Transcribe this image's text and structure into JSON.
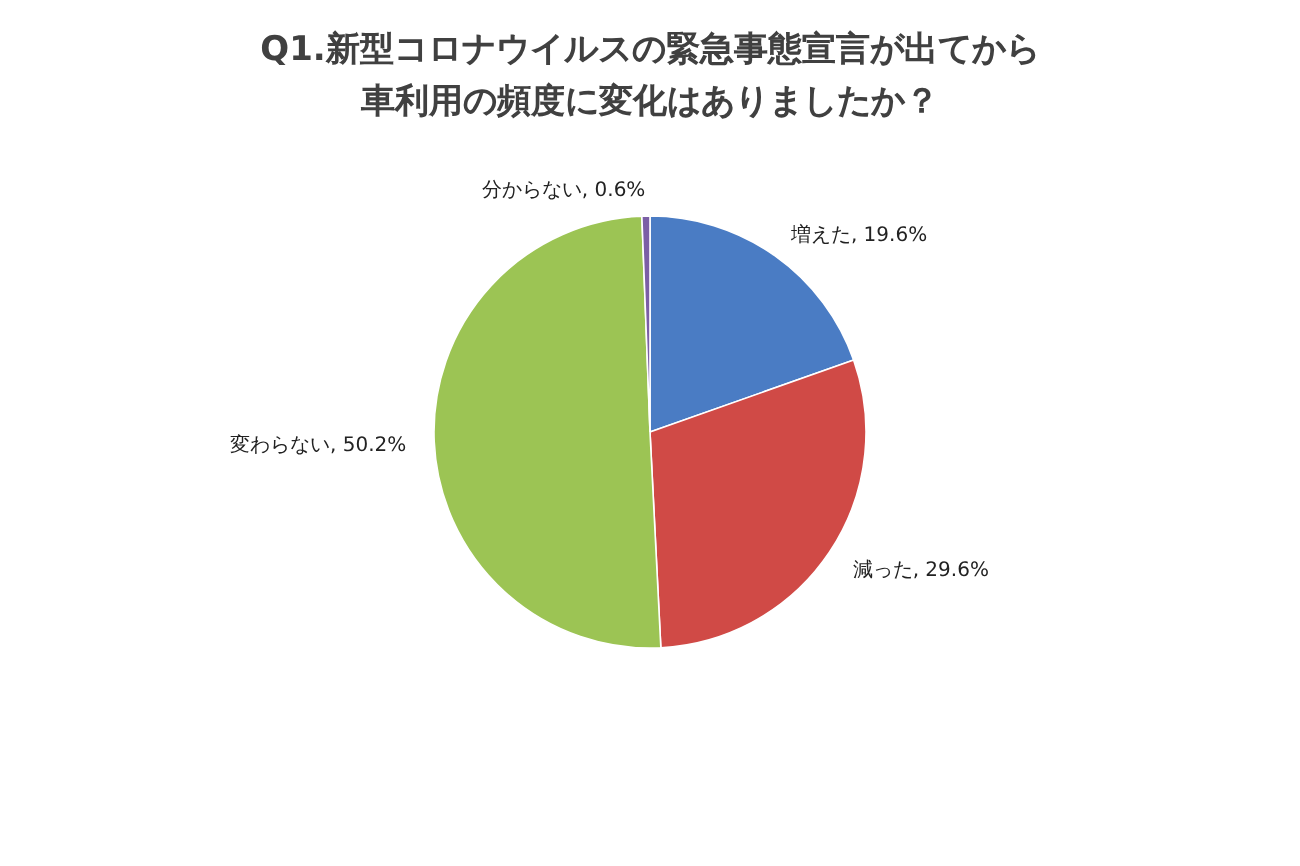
{
  "chart_data": {
    "type": "pie",
    "title": "Q1.新型コロナウイルスの緊急事態宣言が出てから車利用の頻度に変化はありましたか？",
    "categories": [
      "増えた",
      "減った",
      "変わらない",
      "分からない"
    ],
    "values": [
      19.6,
      29.6,
      50.2,
      0.6
    ],
    "colors": [
      "#4a7cc4",
      "#d04a46",
      "#9cc454",
      "#7b5fa6"
    ],
    "value_labels": [
      "19.6%",
      "29.6%",
      "50.2%",
      "0.6%"
    ],
    "legend": false
  }
}
